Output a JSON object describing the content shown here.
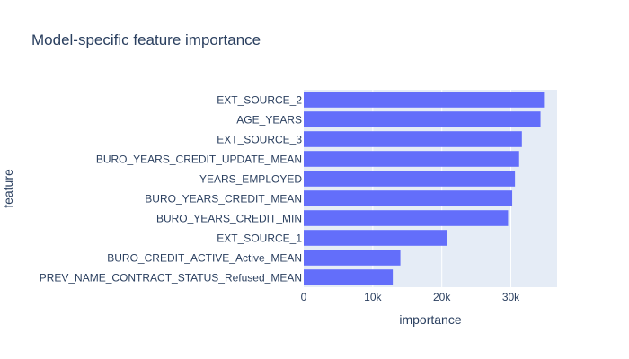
{
  "chart_data": {
    "type": "bar",
    "orientation": "horizontal",
    "title": "Model-specific feature importance",
    "xlabel": "importance",
    "ylabel": "feature",
    "categories": [
      "EXT_SOURCE_2",
      "AGE_YEARS",
      "EXT_SOURCE_3",
      "BURO_YEARS_CREDIT_UPDATE_MEAN",
      "YEARS_EMPLOYED",
      "BURO_YEARS_CREDIT_MEAN",
      "BURO_YEARS_CREDIT_MIN",
      "EXT_SOURCE_1",
      "BURO_CREDIT_ACTIVE_Active_MEAN",
      "PREV_NAME_CONTRACT_STATUS_Refused_MEAN"
    ],
    "values": [
      34800,
      34300,
      31600,
      31200,
      30600,
      30200,
      29600,
      20800,
      14000,
      12900
    ],
    "xlim": [
      0,
      36700
    ],
    "xticks": [
      0,
      10000,
      20000,
      30000
    ],
    "xtick_labels": [
      "0",
      "10k",
      "20k",
      "30k"
    ],
    "grid": true,
    "legend": "none",
    "colors": {
      "bar": "#636efa",
      "plot_background": "#e5ecf6",
      "grid": "#ffffff",
      "text": "#2a3f5f",
      "paper": "#ffffff"
    }
  }
}
